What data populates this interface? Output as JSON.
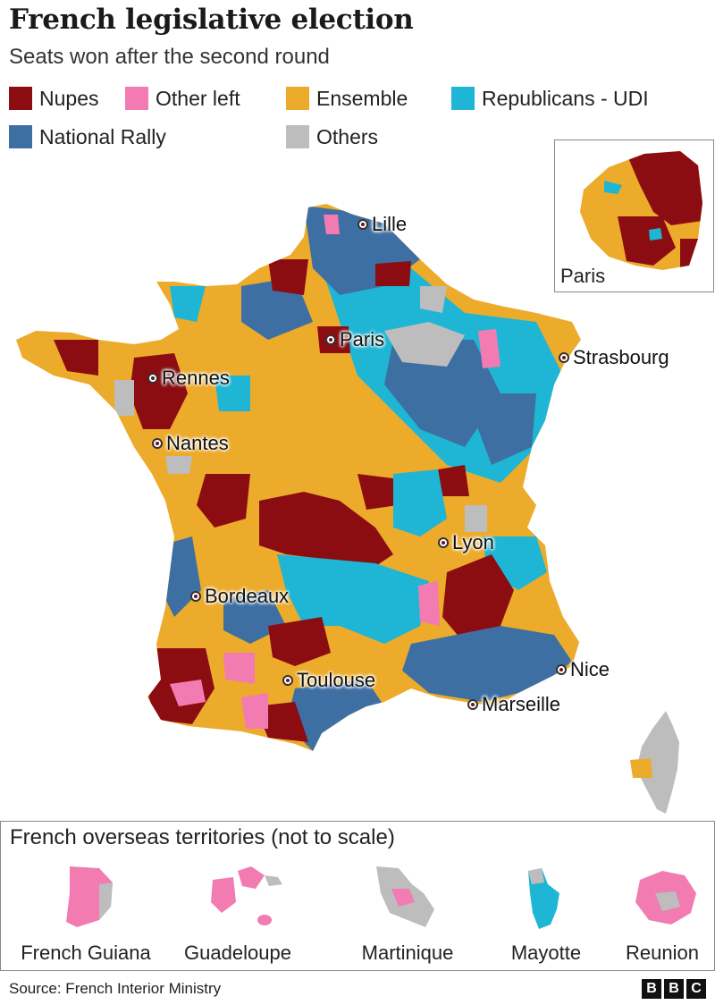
{
  "header": {
    "title": "French legislative election",
    "subtitle": "Seats won after the second round"
  },
  "legend": [
    {
      "label": "Nupes",
      "color": "#8B0D11"
    },
    {
      "label": "Other left",
      "color": "#F27BB1"
    },
    {
      "label": "Ensemble",
      "color": "#ECAB2A"
    },
    {
      "label": "Republicans - UDI",
      "color": "#1EB6D4"
    },
    {
      "label": "National Rally",
      "color": "#3E6FA3"
    },
    {
      "label": "Others",
      "color": "#BDBDBD"
    }
  ],
  "cities": {
    "lille": "Lille",
    "paris": "Paris",
    "strasbourg": "Strasbourg",
    "rennes": "Rennes",
    "nantes": "Nantes",
    "lyon": "Lyon",
    "bordeaux": "Bordeaux",
    "toulouse": "Toulouse",
    "nice": "Nice",
    "marseille": "Marseille"
  },
  "inset": {
    "label": "Paris"
  },
  "overseas": {
    "title": "French overseas territories (not to scale)",
    "territories": [
      {
        "name": "French Guiana"
      },
      {
        "name": "Guadeloupe"
      },
      {
        "name": "Martinique"
      },
      {
        "name": "Mayotte"
      },
      {
        "name": "Reunion"
      }
    ]
  },
  "footer": {
    "source": "Source: French Interior Ministry",
    "logo": [
      "B",
      "B",
      "C"
    ]
  }
}
